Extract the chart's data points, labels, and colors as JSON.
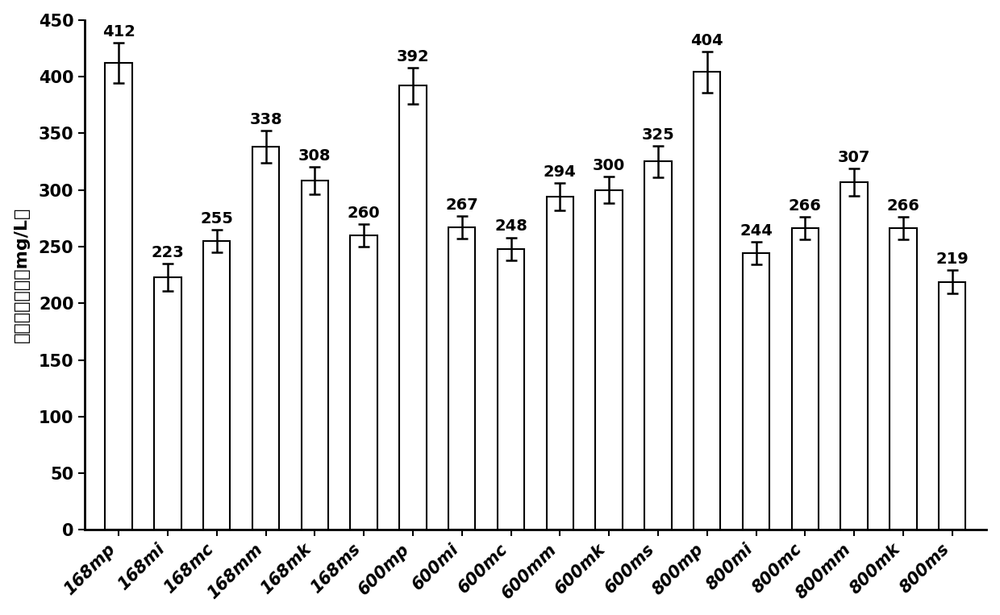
{
  "categories": [
    "168mp",
    "168mi",
    "168mc",
    "168mm",
    "168mk",
    "168ms",
    "600mp",
    "600mi",
    "600mc",
    "600mm",
    "600mk",
    "600ms",
    "800mp",
    "800mi",
    "800mc",
    "800mm",
    "800mk",
    "800ms"
  ],
  "values": [
    412,
    223,
    255,
    338,
    308,
    260,
    392,
    267,
    248,
    294,
    300,
    325,
    404,
    244,
    266,
    307,
    266,
    219
  ],
  "errors": [
    18,
    12,
    10,
    14,
    12,
    10,
    16,
    10,
    10,
    12,
    12,
    14,
    18,
    10,
    10,
    12,
    10,
    10
  ],
  "bar_color": "#ffffff",
  "bar_edgecolor": "#000000",
  "ylabel": "支角硫因产量（mg/L）",
  "ylim": [
    0,
    450
  ],
  "yticks": [
    0,
    50,
    100,
    150,
    200,
    250,
    300,
    350,
    400,
    450
  ],
  "bar_width": 0.55,
  "annotation_fontsize": 14,
  "label_fontsize": 16,
  "tick_fontsize": 15,
  "spine_linewidth": 2.0
}
